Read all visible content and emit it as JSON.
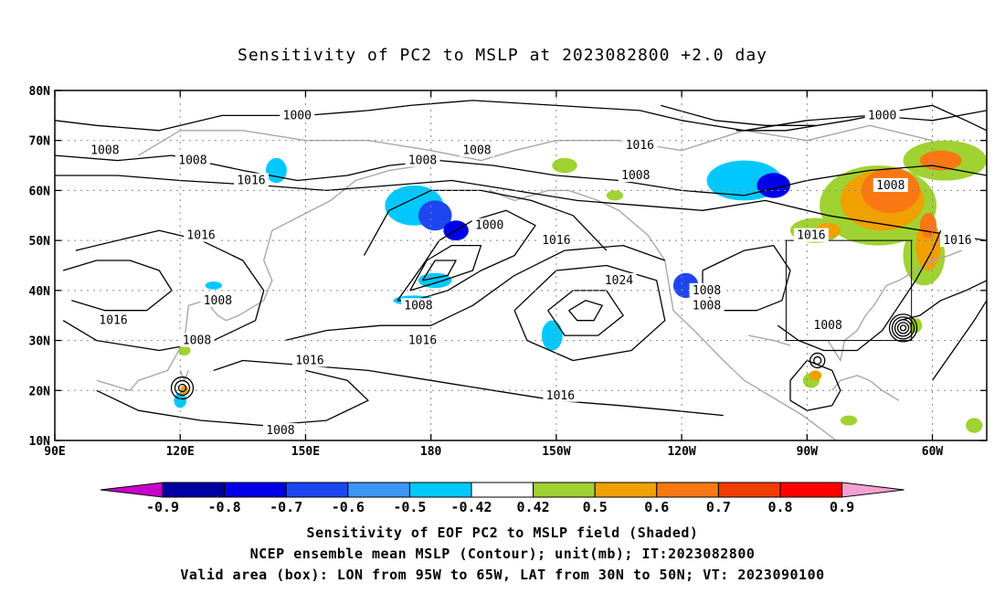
{
  "title": "Sensitivity of PC2 to MSLP at 2023082800 +2.0 day",
  "map": {
    "lon_labels": [
      "90E",
      "120E",
      "150E",
      "180",
      "150W",
      "120W",
      "90W",
      "60W"
    ],
    "lat_labels": [
      "80N",
      "70N",
      "60N",
      "50N",
      "40N",
      "30N",
      "20N",
      "10N"
    ],
    "lon_ticks_deg": [
      90,
      120,
      150,
      180,
      210,
      240,
      270,
      300
    ],
    "lat_ticks_deg": [
      80,
      70,
      60,
      50,
      40,
      30,
      20,
      10
    ],
    "lon_range_deg": [
      90,
      313
    ],
    "lat_range_deg": [
      10,
      80
    ],
    "box": {
      "lon": [
        265,
        295
      ],
      "lat": [
        30,
        50
      ]
    },
    "contour_labels": [
      {
        "text": "1000",
        "lon": 148,
        "lat": 75
      },
      {
        "text": "1008",
        "lon": 102,
        "lat": 68
      },
      {
        "text": "1008",
        "lon": 123,
        "lat": 66
      },
      {
        "text": "1016",
        "lon": 137,
        "lat": 62
      },
      {
        "text": "1016",
        "lon": 125,
        "lat": 51
      },
      {
        "text": "1008",
        "lon": 129,
        "lat": 38
      },
      {
        "text": "1016",
        "lon": 104,
        "lat": 34
      },
      {
        "text": "1008",
        "lon": 124,
        "lat": 30
      },
      {
        "text": "1016",
        "lon": 151,
        "lat": 26
      },
      {
        "text": "1008",
        "lon": 144,
        "lat": 12
      },
      {
        "text": "1008",
        "lon": 178,
        "lat": 66
      },
      {
        "text": "1008",
        "lon": 191,
        "lat": 68
      },
      {
        "text": "1000",
        "lon": 194,
        "lat": 53
      },
      {
        "text": "1008",
        "lon": 177,
        "lat": 37
      },
      {
        "text": "1016",
        "lon": 178,
        "lat": 30
      },
      {
        "text": "1016",
        "lon": 210,
        "lat": 50
      },
      {
        "text": "1024",
        "lon": 225,
        "lat": 42
      },
      {
        "text": "1016",
        "lon": 211,
        "lat": 19
      },
      {
        "text": "1016",
        "lon": 230,
        "lat": 69
      },
      {
        "text": "1008",
        "lon": 229,
        "lat": 63
      },
      {
        "text": "1008",
        "lon": 246,
        "lat": 40
      },
      {
        "text": "1008",
        "lon": 246,
        "lat": 37
      },
      {
        "text": "1008",
        "lon": 275,
        "lat": 33
      },
      {
        "text": "1016",
        "lon": 271,
        "lat": 51
      },
      {
        "text": "1008",
        "lon": 290,
        "lat": 61
      },
      {
        "text": "1000",
        "lon": 288,
        "lat": 75
      },
      {
        "text": "1016",
        "lon": 306,
        "lat": 50
      }
    ]
  },
  "colorbar": {
    "labels": [
      "-0.9",
      "-0.8",
      "-0.7",
      "-0.6",
      "-0.5",
      "-0.42",
      "0.42",
      "0.5",
      "0.6",
      "0.7",
      "0.8",
      "0.9"
    ],
    "colors": [
      "#c800c8",
      "#0000a0",
      "#0000e6",
      "#1e46f0",
      "#3c96f5",
      "#00c8ff",
      "#ffffff",
      "#a0d232",
      "#f0a000",
      "#fa7814",
      "#f03c00",
      "#ff0000",
      "#f5a0d2"
    ]
  },
  "footer": {
    "line1": "Sensitivity of EOF PC2 to MSLP field (Shaded)",
    "line2": "NCEP ensemble mean MSLP (Contour); unit(mb); IT:2023082800",
    "line3": "Valid area (box): LON from 95W to 65W, LAT from 30N to 50N; VT: 2023090100"
  }
}
